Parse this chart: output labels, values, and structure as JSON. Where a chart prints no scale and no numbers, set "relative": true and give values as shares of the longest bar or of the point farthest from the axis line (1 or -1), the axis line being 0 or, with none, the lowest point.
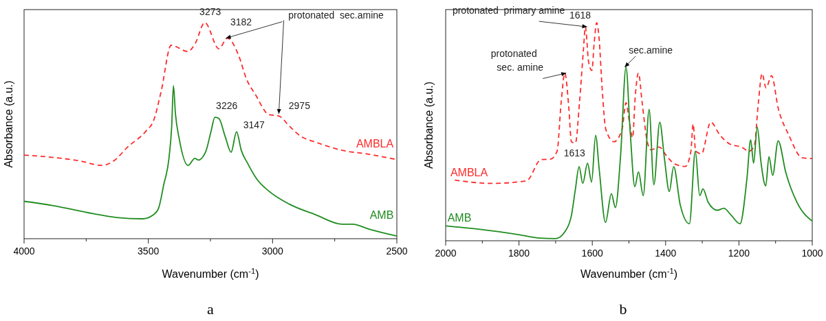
{
  "chart_data": [
    {
      "type": "line",
      "relative": true,
      "xlabel": "Wavenumber (cm$^{-1}$)",
      "ylabel": "Absorbance (a.u.)",
      "xlim": [
        4000,
        2500
      ],
      "xticks": [
        4000,
        {
          "value": 3750,
          "label": null
        },
        3500,
        {
          "value": 3250,
          "label": null
        },
        3000,
        {
          "value": 2750,
          "label": null
        },
        2500
      ],
      "tick_labels": "x",
      "legend": false,
      "grid": false,
      "marker": "none",
      "series": [
        {
          "name": "AMBLA",
          "color": "#ff2a2a",
          "line_style": "dashed",
          "x": [
            4000,
            3882,
            3776,
            3686,
            3639,
            3586,
            3507,
            3480,
            3449,
            3408,
            3341,
            3311,
            3273,
            3216,
            3182,
            3137,
            3105,
            3068,
            3015,
            2975,
            2931,
            2889,
            2825,
            2720,
            2614,
            2500
          ],
          "values": [
            0.387,
            0.376,
            0.36,
            0.339,
            0.36,
            0.421,
            0.501,
            0.543,
            0.678,
            0.895,
            0.866,
            0.904,
            1.0,
            0.879,
            0.928,
            0.849,
            0.739,
            0.665,
            0.574,
            0.568,
            0.519,
            0.476,
            0.446,
            0.409,
            0.391,
            0.366
          ]
        },
        {
          "name": "AMB",
          "color": "#1f8c1f",
          "line_style": "solid",
          "x": [
            4000,
            3882,
            3723,
            3628,
            3523,
            3480,
            3459,
            3438,
            3417,
            3406,
            3399,
            3391,
            3375,
            3340,
            3313,
            3299,
            3269,
            3248,
            3232,
            3216,
            3190,
            3167,
            3145,
            3126,
            3100,
            3063,
            3015,
            2931,
            2825,
            2720,
            2678,
            2614,
            2500
          ],
          "values": [
            0.173,
            0.153,
            0.116,
            0.098,
            0.092,
            0.11,
            0.14,
            0.25,
            0.372,
            0.519,
            0.708,
            0.58,
            0.458,
            0.339,
            0.372,
            0.364,
            0.403,
            0.495,
            0.562,
            0.556,
            0.47,
            0.4,
            0.495,
            0.409,
            0.348,
            0.275,
            0.22,
            0.159,
            0.11,
            0.067,
            0.067,
            0.045,
            0.012
          ]
        }
      ],
      "annotations": [
        {
          "text": "3273",
          "x": 3273,
          "y": 1.0
        },
        {
          "text": "3182",
          "x": 3182,
          "y": 0.928
        },
        {
          "text": "2975",
          "x": 2975,
          "y": 0.568
        },
        {
          "text": "3226",
          "x": 3226,
          "y": 0.556
        },
        {
          "text": "3147",
          "x": 3147,
          "y": 0.495
        },
        {
          "text": "protonated  sec.amine",
          "x": 3182,
          "y": 0.928
        },
        "a"
      ]
    },
    {
      "type": "line",
      "relative": true,
      "xlabel": "Wavenumber (cm$^{-1}$)",
      "ylabel": "Absorbance (a.u.)",
      "xlim": [
        2000,
        1000
      ],
      "xticks": [
        2000,
        {
          "value": 1900,
          "label": null
        },
        1800,
        {
          "value": 1700,
          "label": null
        },
        1600,
        {
          "value": 1500,
          "label": null
        },
        1400,
        {
          "value": 1300,
          "label": null
        },
        1200,
        {
          "value": 1100,
          "label": null
        },
        1000
      ],
      "tick_labels": "x",
      "legend": false,
      "grid": false,
      "marker": "none",
      "series": [
        {
          "name": "AMBLA",
          "color": "#ff2a2a",
          "line_style": "dashed",
          "x": [
            1975,
            1873,
            1779,
            1740,
            1714,
            1696,
            1685,
            1675,
            1664,
            1657,
            1646,
            1635,
            1624,
            1619,
            1610,
            1601,
            1595,
            1588,
            1581,
            1573,
            1563,
            1541,
            1519,
            1508,
            1498,
            1490,
            1483,
            1474,
            1464,
            1450,
            1440,
            1418,
            1396,
            1375,
            1346,
            1331,
            1325,
            1318,
            1302,
            1277,
            1252,
            1223,
            1194,
            1172,
            1158,
            1147,
            1137,
            1126,
            1111,
            1093,
            1064,
            1027,
            1000
          ],
          "values": [
            0.278,
            0.263,
            0.275,
            0.372,
            0.374,
            0.411,
            0.633,
            0.769,
            0.609,
            0.454,
            0.448,
            0.633,
            0.88,
            0.981,
            0.819,
            0.781,
            0.905,
            1.0,
            0.917,
            0.695,
            0.51,
            0.454,
            0.51,
            0.633,
            0.535,
            0.473,
            0.658,
            0.769,
            0.633,
            0.454,
            0.417,
            0.43,
            0.386,
            0.352,
            0.341,
            0.411,
            0.535,
            0.411,
            0.399,
            0.544,
            0.485,
            0.442,
            0.43,
            0.411,
            0.436,
            0.633,
            0.767,
            0.701,
            0.757,
            0.609,
            0.485,
            0.38,
            0.377
          ]
        },
        {
          "name": "AMB",
          "color": "#1f8c1f",
          "line_style": "solid",
          "x": [
            2000,
            1910,
            1801,
            1743,
            1700,
            1675,
            1657,
            1646,
            1636,
            1626,
            1613,
            1602,
            1591,
            1581,
            1564,
            1548,
            1537,
            1523,
            1508,
            1497,
            1484,
            1474,
            1461,
            1445,
            1432,
            1416,
            1403,
            1390,
            1378,
            1360,
            1335,
            1319,
            1307,
            1298,
            1284,
            1259,
            1241,
            1223,
            1197,
            1178,
            1168,
            1160,
            1150,
            1140,
            1127,
            1118,
            1108,
            1093,
            1072,
            1042,
            1000
          ],
          "values": [
            0.068,
            0.053,
            0.028,
            0.012,
            0.01,
            0.041,
            0.115,
            0.238,
            0.34,
            0.263,
            0.356,
            0.269,
            0.483,
            0.325,
            0.084,
            0.216,
            0.152,
            0.386,
            0.796,
            0.51,
            0.248,
            0.316,
            0.207,
            0.602,
            0.257,
            0.544,
            0.374,
            0.226,
            0.34,
            0.164,
            0.078,
            0.411,
            0.207,
            0.238,
            0.177,
            0.14,
            0.149,
            0.121,
            0.078,
            0.288,
            0.463,
            0.356,
            0.522,
            0.362,
            0.251,
            0.386,
            0.3,
            0.458,
            0.312,
            0.177,
            0.09
          ]
        }
      ],
      "annotations": [
        {
          "text": "protonated  primary amine",
          "x": 1618,
          "y": 0.981
        },
        {
          "text": "1618",
          "x": 1618,
          "y": 0.981
        },
        {
          "text": "protonated\nsec. amine",
          "x": 1675,
          "y": 0.769
        },
        {
          "text": "sec.amine",
          "x": 1508,
          "y": 0.796
        },
        {
          "text": "1613",
          "x": 1613,
          "y": 0.356
        },
        "b"
      ]
    }
  ]
}
